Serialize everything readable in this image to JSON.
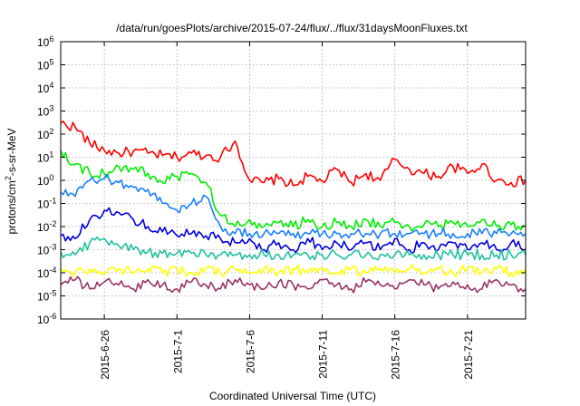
{
  "chart_data": {
    "type": "line",
    "title": "/data/run/goesPlots/archive/2015-07-24/flux/../flux/31daysMoonFluxes.txt",
    "xlabel": "Coordinated Universal Time (UTC)",
    "ylabel_base": "protons/cm",
    "ylabel_sup": "2",
    "ylabel_rest": "-s-sr-MeV",
    "y_scale": "log",
    "ylim": [
      1e-06,
      1000000.0
    ],
    "xlim": [
      "2015-06-23",
      "2015-07-25"
    ],
    "grid": true,
    "legend": "none",
    "x_ticks": [
      {
        "date": "2015-06-26",
        "label": "2015-6-26"
      },
      {
        "date": "2015-07-01",
        "label": "2015-7-1"
      },
      {
        "date": "2015-07-06",
        "label": "2015-7-6"
      },
      {
        "date": "2015-07-11",
        "label": "2015-7-11"
      },
      {
        "date": "2015-07-16",
        "label": "2015-7-16"
      },
      {
        "date": "2015-07-21",
        "label": "2015-7-21"
      }
    ],
    "y_ticks": [
      {
        "exp": -6,
        "base": "10",
        "sup": "-6"
      },
      {
        "exp": -5,
        "base": "10",
        "sup": "-5"
      },
      {
        "exp": -4,
        "base": "10",
        "sup": "-4"
      },
      {
        "exp": -3,
        "base": "10",
        "sup": "-3"
      },
      {
        "exp": -2,
        "base": "10",
        "sup": "-2"
      },
      {
        "exp": -1,
        "base": "10",
        "sup": "-1"
      },
      {
        "exp": 0,
        "base": "10",
        "sup": "0"
      },
      {
        "exp": 1,
        "base": "10",
        "sup": "1"
      },
      {
        "exp": 2,
        "base": "10",
        "sup": "2"
      },
      {
        "exp": 3,
        "base": "10",
        "sup": "3"
      },
      {
        "exp": 4,
        "base": "10",
        "sup": "4"
      },
      {
        "exp": 5,
        "base": "10",
        "sup": "5"
      },
      {
        "exp": 6,
        "base": "10",
        "sup": "6"
      }
    ],
    "series": [
      {
        "color": "#ff0000",
        "x": [
          "2015-06-23",
          "2015-06-24",
          "2015-06-25",
          "2015-06-26",
          "2015-06-27",
          "2015-06-28",
          "2015-06-29",
          "2015-06-30",
          "2015-07-01",
          "2015-07-02",
          "2015-07-03",
          "2015-07-04",
          "2015-07-05",
          "2015-07-06",
          "2015-07-07",
          "2015-07-08",
          "2015-07-09",
          "2015-07-10",
          "2015-07-11",
          "2015-07-12",
          "2015-07-13",
          "2015-07-14",
          "2015-07-15",
          "2015-07-16",
          "2015-07-17",
          "2015-07-18",
          "2015-07-19",
          "2015-07-20",
          "2015-07-21",
          "2015-07-22",
          "2015-07-23",
          "2015-07-24",
          "2015-07-25"
        ],
        "y": [
          300,
          200,
          40,
          20,
          15,
          18,
          15,
          12,
          10,
          15,
          12,
          10,
          50,
          1.0,
          0.8,
          1.2,
          0.6,
          1.5,
          0.9,
          3.0,
          0.8,
          2.0,
          1.0,
          8.0,
          3.0,
          2.0,
          1.5,
          4.0,
          2.0,
          5.0,
          1.0,
          0.8,
          1.0
        ]
      },
      {
        "color": "#00ee00",
        "x": [
          "2015-06-23",
          "2015-06-24",
          "2015-06-25",
          "2015-06-26",
          "2015-06-27",
          "2015-06-28",
          "2015-06-29",
          "2015-06-30",
          "2015-07-01",
          "2015-07-02",
          "2015-07-03",
          "2015-07-04",
          "2015-07-05",
          "2015-07-06",
          "2015-07-07",
          "2015-07-08",
          "2015-07-09",
          "2015-07-10",
          "2015-07-11",
          "2015-07-12",
          "2015-07-13",
          "2015-07-14",
          "2015-07-15",
          "2015-07-16",
          "2015-07-17",
          "2015-07-18",
          "2015-07-19",
          "2015-07-20",
          "2015-07-21",
          "2015-07-22",
          "2015-07-23",
          "2015-07-24",
          "2015-07-25"
        ],
        "y": [
          20,
          5,
          2,
          2,
          4,
          3,
          2,
          0.8,
          1.5,
          2,
          0.8,
          0.03,
          0.01,
          0.02,
          0.01,
          0.015,
          0.01,
          0.02,
          0.01,
          0.015,
          0.01,
          0.02,
          0.01,
          0.015,
          0.01,
          0.012,
          0.01,
          0.015,
          0.01,
          0.02,
          0.01,
          0.012,
          0.01
        ]
      },
      {
        "color": "#1a7fff",
        "x": [
          "2015-06-23",
          "2015-06-24",
          "2015-06-25",
          "2015-06-26",
          "2015-06-27",
          "2015-06-28",
          "2015-06-29",
          "2015-06-30",
          "2015-07-01",
          "2015-07-02",
          "2015-07-03",
          "2015-07-04",
          "2015-07-05",
          "2015-07-06",
          "2015-07-07",
          "2015-07-08",
          "2015-07-09",
          "2015-07-10",
          "2015-07-11",
          "2015-07-12",
          "2015-07-13",
          "2015-07-14",
          "2015-07-15",
          "2015-07-16",
          "2015-07-17",
          "2015-07-18",
          "2015-07-19",
          "2015-07-20",
          "2015-07-21",
          "2015-07-22",
          "2015-07-23",
          "2015-07-24",
          "2015-07-25"
        ],
        "y": [
          0.3,
          0.2,
          1.0,
          1.2,
          0.8,
          0.5,
          0.4,
          0.1,
          0.05,
          0.1,
          0.2,
          0.01,
          0.005,
          0.005,
          0.005,
          0.005,
          0.005,
          0.005,
          0.005,
          0.005,
          0.005,
          0.005,
          0.005,
          0.005,
          0.005,
          0.005,
          0.005,
          0.005,
          0.005,
          0.005,
          0.005,
          0.005,
          0.005
        ]
      },
      {
        "color": "#0000dd",
        "x": [
          "2015-06-23",
          "2015-06-24",
          "2015-06-25",
          "2015-06-26",
          "2015-06-27",
          "2015-06-28",
          "2015-06-29",
          "2015-06-30",
          "2015-07-01",
          "2015-07-02",
          "2015-07-03",
          "2015-07-04",
          "2015-07-05",
          "2015-07-06",
          "2015-07-07",
          "2015-07-08",
          "2015-07-09",
          "2015-07-10",
          "2015-07-11",
          "2015-07-12",
          "2015-07-13",
          "2015-07-14",
          "2015-07-15",
          "2015-07-16",
          "2015-07-17",
          "2015-07-18",
          "2015-07-19",
          "2015-07-20",
          "2015-07-21",
          "2015-07-22",
          "2015-07-23",
          "2015-07-24",
          "2015-07-25"
        ],
        "y": [
          0.004,
          0.003,
          0.02,
          0.05,
          0.04,
          0.02,
          0.01,
          0.006,
          0.004,
          0.005,
          0.004,
          0.003,
          0.002,
          0.003,
          0.001,
          0.002,
          0.001,
          0.003,
          0.001,
          0.002,
          0.001,
          0.002,
          0.001,
          0.003,
          0.001,
          0.002,
          0.001,
          0.002,
          0.001,
          0.002,
          0.001,
          0.002,
          0.001
        ]
      },
      {
        "color": "#22c0a0",
        "x": [
          "2015-06-23",
          "2015-06-24",
          "2015-06-25",
          "2015-06-26",
          "2015-06-27",
          "2015-06-28",
          "2015-06-29",
          "2015-06-30",
          "2015-07-01",
          "2015-07-02",
          "2015-07-03",
          "2015-07-04",
          "2015-07-05",
          "2015-07-06",
          "2015-07-07",
          "2015-07-08",
          "2015-07-09",
          "2015-07-10",
          "2015-07-11",
          "2015-07-12",
          "2015-07-13",
          "2015-07-14",
          "2015-07-15",
          "2015-07-16",
          "2015-07-17",
          "2015-07-18",
          "2015-07-19",
          "2015-07-20",
          "2015-07-21",
          "2015-07-22",
          "2015-07-23",
          "2015-07-24",
          "2015-07-25"
        ],
        "y": [
          0.0008,
          0.0006,
          0.002,
          0.003,
          0.0015,
          0.001,
          0.0008,
          0.0007,
          0.0007,
          0.0007,
          0.0006,
          0.0006,
          0.0006,
          0.0006,
          0.0006,
          0.0006,
          0.0006,
          0.0006,
          0.0006,
          0.0006,
          0.0006,
          0.0006,
          0.0006,
          0.0006,
          0.0006,
          0.0006,
          0.0006,
          0.0006,
          0.0006,
          0.0006,
          0.0006,
          0.0006,
          0.0006
        ]
      },
      {
        "color": "#ffff00",
        "x": [
          "2015-06-23",
          "2015-06-24",
          "2015-06-25",
          "2015-06-26",
          "2015-06-27",
          "2015-06-28",
          "2015-06-29",
          "2015-06-30",
          "2015-07-01",
          "2015-07-02",
          "2015-07-03",
          "2015-07-04",
          "2015-07-05",
          "2015-07-06",
          "2015-07-07",
          "2015-07-08",
          "2015-07-09",
          "2015-07-10",
          "2015-07-11",
          "2015-07-12",
          "2015-07-13",
          "2015-07-14",
          "2015-07-15",
          "2015-07-16",
          "2015-07-17",
          "2015-07-18",
          "2015-07-19",
          "2015-07-20",
          "2015-07-21",
          "2015-07-22",
          "2015-07-23",
          "2015-07-24",
          "2015-07-25"
        ],
        "y": [
          0.00015,
          0.0001,
          0.00015,
          0.0001,
          0.00015,
          0.0001,
          0.00015,
          0.0001,
          0.00015,
          0.0001,
          0.00015,
          0.0001,
          0.00015,
          0.0001,
          0.00015,
          0.0001,
          0.00015,
          0.0001,
          0.00015,
          0.0001,
          0.00015,
          0.0001,
          0.00015,
          0.0001,
          0.00015,
          0.0001,
          0.00015,
          0.0001,
          0.00015,
          0.0001,
          0.00015,
          0.0001,
          0.00015
        ]
      },
      {
        "color": "#993366",
        "x": [
          "2015-06-23",
          "2015-06-24",
          "2015-06-25",
          "2015-06-26",
          "2015-06-27",
          "2015-06-28",
          "2015-06-29",
          "2015-06-30",
          "2015-07-01",
          "2015-07-02",
          "2015-07-03",
          "2015-07-04",
          "2015-07-05",
          "2015-07-06",
          "2015-07-07",
          "2015-07-08",
          "2015-07-09",
          "2015-07-10",
          "2015-07-11",
          "2015-07-12",
          "2015-07-13",
          "2015-07-14",
          "2015-07-15",
          "2015-07-16",
          "2015-07-17",
          "2015-07-18",
          "2015-07-19",
          "2015-07-20",
          "2015-07-21",
          "2015-07-22",
          "2015-07-23",
          "2015-07-24",
          "2015-07-25"
        ],
        "y": [
          3e-05,
          5e-05,
          2e-05,
          4e-05,
          3e-05,
          2e-05,
          5e-05,
          3e-05,
          2e-05,
          4e-05,
          3e-05,
          2e-05,
          5e-05,
          3e-05,
          2e-05,
          4e-05,
          3e-05,
          2e-05,
          5e-05,
          3e-05,
          2e-05,
          4e-05,
          3e-05,
          2e-05,
          5e-05,
          3e-05,
          2e-05,
          4e-05,
          3e-05,
          2e-05,
          5e-05,
          3e-05,
          2e-05
        ]
      }
    ]
  }
}
